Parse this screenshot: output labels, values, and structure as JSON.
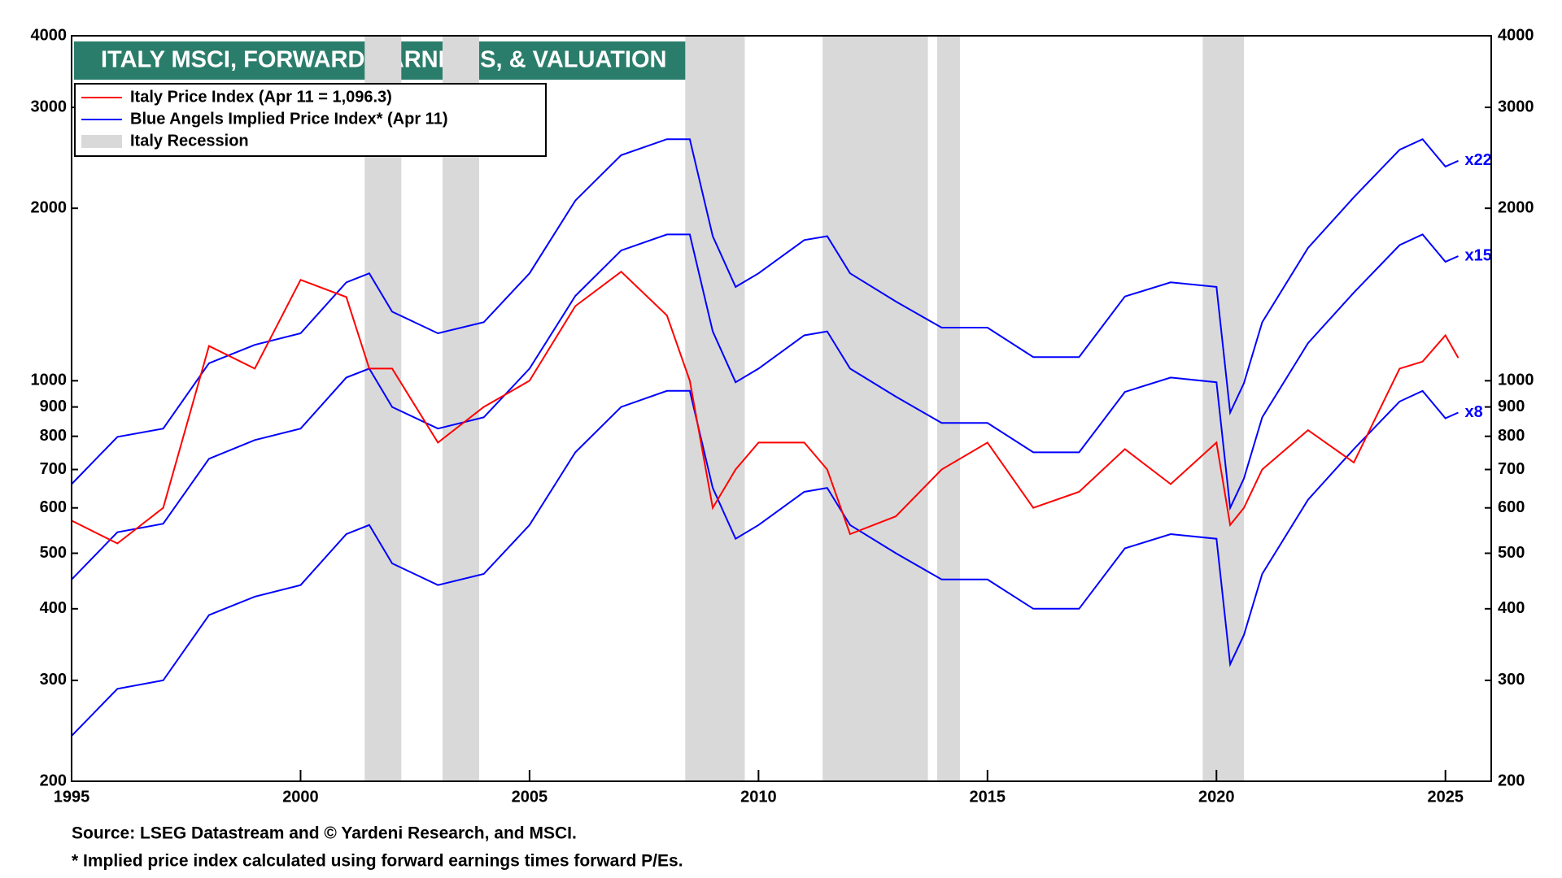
{
  "chart_data": {
    "type": "line",
    "title": "ITALY MSCI, FORWARD EARNINGS, & VALUATION",
    "log_scale": true,
    "xlim": [
      1995,
      2026
    ],
    "xticks": [
      1995,
      2000,
      2005,
      2010,
      2015,
      2020,
      2025
    ],
    "ylim": [
      200,
      4000
    ],
    "yticks": [
      200,
      300,
      400,
      500,
      600,
      700,
      800,
      900,
      1000,
      2000,
      3000,
      4000
    ],
    "right_axis": true,
    "x": [
      1995,
      1996,
      1997,
      1998,
      1999,
      2000,
      2001,
      2001.5,
      2002,
      2003,
      2004,
      2005,
      2006,
      2007,
      2008,
      2008.5,
      2009,
      2009.5,
      2010,
      2011,
      2011.5,
      2012,
      2013,
      2014,
      2015,
      2016,
      2017,
      2018,
      2019,
      2020,
      2020.3,
      2020.6,
      2021,
      2022,
      2023,
      2024,
      2024.5,
      2025,
      2025.28
    ],
    "series": [
      {
        "color": "#ff0000",
        "values": [
          570,
          520,
          600,
          1150,
          1050,
          1500,
          1400,
          1050,
          1050,
          780,
          900,
          1000,
          1350,
          1550,
          1300,
          1000,
          600,
          700,
          780,
          780,
          700,
          540,
          580,
          700,
          780,
          600,
          640,
          760,
          660,
          780,
          560,
          600,
          700,
          820,
          720,
          1050,
          1080,
          1200,
          1096.3
        ]
      },
      {
        "name": "x22",
        "color": "#0000ff",
        "values": [
          660,
          798,
          825,
          1073,
          1155,
          1210,
          1485,
          1540,
          1320,
          1210,
          1265,
          1540,
          2063,
          2475,
          2640,
          2640,
          1788,
          1458,
          1540,
          1760,
          1788,
          1540,
          1375,
          1238,
          1238,
          1100,
          1100,
          1403,
          1485,
          1458,
          880,
          990,
          1265,
          1705,
          2090,
          2530,
          2640,
          2365,
          2420
        ]
      },
      {
        "name": "x15",
        "color": "#0000ff",
        "values": [
          450,
          544,
          563,
          731,
          788,
          825,
          1013,
          1050,
          900,
          825,
          863,
          1050,
          1406,
          1688,
          1800,
          1800,
          1219,
          994,
          1050,
          1200,
          1219,
          1050,
          938,
          844,
          844,
          750,
          750,
          956,
          1013,
          994,
          600,
          675,
          863,
          1163,
          1425,
          1725,
          1800,
          1613,
          1650
        ]
      },
      {
        "name": "x8",
        "color": "#0000ff",
        "values": [
          240,
          290,
          300,
          390,
          420,
          440,
          540,
          560,
          480,
          440,
          460,
          560,
          750,
          900,
          960,
          960,
          650,
          530,
          560,
          640,
          650,
          560,
          500,
          450,
          450,
          400,
          400,
          510,
          540,
          530,
          320,
          360,
          460,
          620,
          760,
          920,
          960,
          860,
          880
        ]
      }
    ],
    "recessions": [
      [
        2001.4,
        2002.2
      ],
      [
        2003.1,
        2003.9
      ],
      [
        2008.4,
        2009.7
      ],
      [
        2011.4,
        2013.7
      ],
      [
        2013.9,
        2014.4
      ],
      [
        2019.7,
        2020.6
      ]
    ],
    "recession_color": "#d9d9d9",
    "legend": [
      {
        "label": "Italy Price Index (Apr 11 = 1,096.3)",
        "color": "#ff0000"
      },
      {
        "label": "Blue Angels Implied Price Index* (Apr 11)",
        "color": "#0000ff"
      },
      {
        "label": "Italy Recession",
        "color": "#d9d9d9"
      }
    ],
    "notes": [
      "Source: LSEG Datastream and © Yardeni Research, and MSCI.",
      "* Implied price index calculated using forward earnings times forward P/Es."
    ]
  }
}
